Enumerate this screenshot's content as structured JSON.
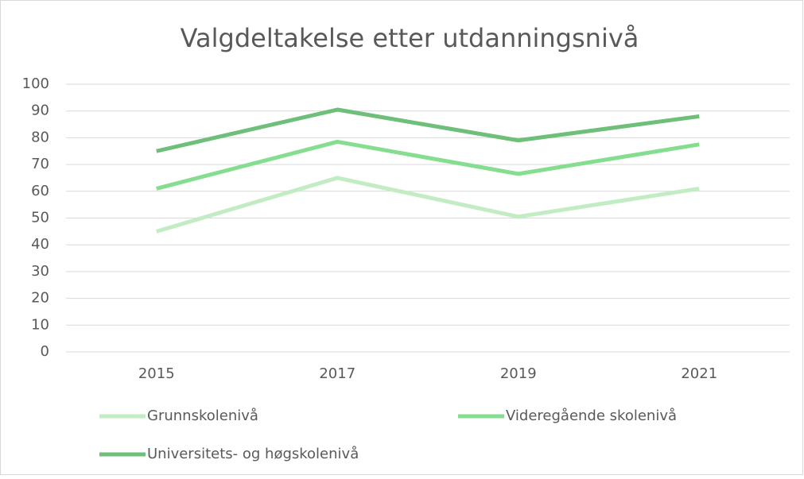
{
  "chart_data": {
    "type": "line",
    "title": "Valgdeltakelse etter utdanningsnivå",
    "categories": [
      "2015",
      "2017",
      "2019",
      "2021"
    ],
    "series": [
      {
        "name": "Grunnskolenivå",
        "color": "#c2ecc4",
        "values": [
          45,
          65,
          50.5,
          61
        ]
      },
      {
        "name": "Videregående skolenivå",
        "color": "#85de8f",
        "values": [
          61,
          78.5,
          66.5,
          77.5
        ]
      },
      {
        "name": "Universitets- og høgskolenivå",
        "color": "#6dbf7a",
        "values": [
          75,
          90.5,
          79,
          88
        ]
      }
    ],
    "ylim": [
      0,
      100
    ],
    "yticks": [
      0,
      10,
      20,
      30,
      40,
      50,
      60,
      70,
      80,
      90,
      100
    ],
    "grid": true,
    "legend": "bottom"
  }
}
